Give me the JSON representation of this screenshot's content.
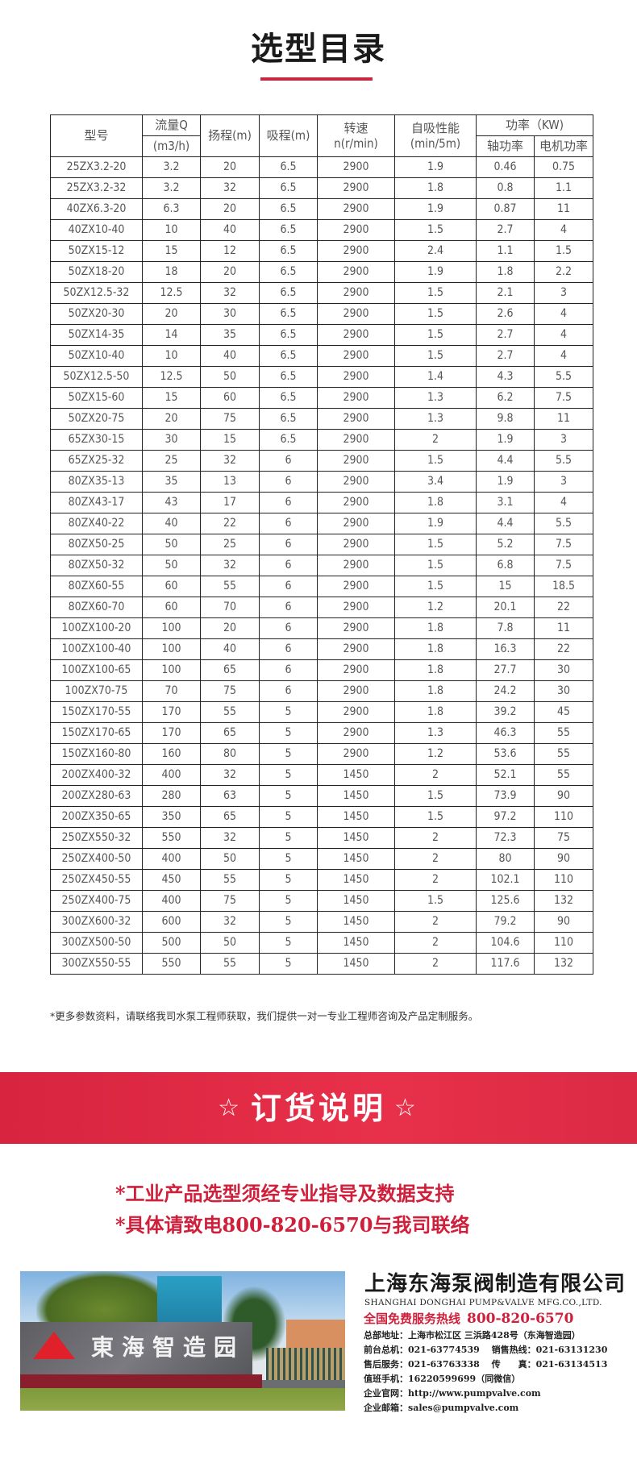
{
  "title": "选型目录",
  "table": {
    "headers": {
      "model": "型号",
      "flow": "流量Q",
      "flow_unit": "(m3/h)",
      "head": "扬程(m)",
      "suction": "吸程(m)",
      "speed": "转速",
      "speed_unit": "n(r/min)",
      "self_priming": "自吸性能",
      "self_priming_unit": "(min/5m)",
      "power": "功率（KW)",
      "shaft_power": "轴功率",
      "motor_power": "电机功率"
    },
    "rows": [
      [
        "25ZX3.2-20",
        "3.2",
        "20",
        "6.5",
        "2900",
        "1.9",
        "0.46",
        "0.75"
      ],
      [
        "25ZX3.2-32",
        "3.2",
        "32",
        "6.5",
        "2900",
        "1.8",
        "0.8",
        "1.1"
      ],
      [
        "40ZX6.3-20",
        "6.3",
        "20",
        "6.5",
        "2900",
        "1.9",
        "0.87",
        "11"
      ],
      [
        "40ZX10-40",
        "10",
        "40",
        "6.5",
        "2900",
        "1.5",
        "2.7",
        "4"
      ],
      [
        "50ZX15-12",
        "15",
        "12",
        "6.5",
        "2900",
        "2.4",
        "1.1",
        "1.5"
      ],
      [
        "50ZX18-20",
        "18",
        "20",
        "6.5",
        "2900",
        "1.9",
        "1.8",
        "2.2"
      ],
      [
        "50ZX12.5-32",
        "12.5",
        "32",
        "6.5",
        "2900",
        "1.5",
        "2.1",
        "3"
      ],
      [
        "50ZX20-30",
        "20",
        "30",
        "6.5",
        "2900",
        "1.5",
        "2.6",
        "4"
      ],
      [
        "50ZX14-35",
        "14",
        "35",
        "6.5",
        "2900",
        "1.5",
        "2.7",
        "4"
      ],
      [
        "50ZX10-40",
        "10",
        "40",
        "6.5",
        "2900",
        "1.5",
        "2.7",
        "4"
      ],
      [
        "50ZX12.5-50",
        "12.5",
        "50",
        "6.5",
        "2900",
        "1.4",
        "4.3",
        "5.5"
      ],
      [
        "50ZX15-60",
        "15",
        "60",
        "6.5",
        "2900",
        "1.3",
        "6.2",
        "7.5"
      ],
      [
        "50ZX20-75",
        "20",
        "75",
        "6.5",
        "2900",
        "1.3",
        "9.8",
        "11"
      ],
      [
        "65ZX30-15",
        "30",
        "15",
        "6.5",
        "2900",
        "2",
        "1.9",
        "3"
      ],
      [
        "65ZX25-32",
        "25",
        "32",
        "6",
        "2900",
        "1.5",
        "4.4",
        "5.5"
      ],
      [
        "80ZX35-13",
        "35",
        "13",
        "6",
        "2900",
        "3.4",
        "1.9",
        "3"
      ],
      [
        "80ZX43-17",
        "43",
        "17",
        "6",
        "2900",
        "1.8",
        "3.1",
        "4"
      ],
      [
        "80ZX40-22",
        "40",
        "22",
        "6",
        "2900",
        "1.9",
        "4.4",
        "5.5"
      ],
      [
        "80ZX50-25",
        "50",
        "25",
        "6",
        "2900",
        "1.5",
        "5.2",
        "7.5"
      ],
      [
        "80ZX50-32",
        "50",
        "32",
        "6",
        "2900",
        "1.5",
        "6.8",
        "7.5"
      ],
      [
        "80ZX60-55",
        "60",
        "55",
        "6",
        "2900",
        "1.5",
        "15",
        "18.5"
      ],
      [
        "80ZX60-70",
        "60",
        "70",
        "6",
        "2900",
        "1.2",
        "20.1",
        "22"
      ],
      [
        "100ZX100-20",
        "100",
        "20",
        "6",
        "2900",
        "1.8",
        "7.8",
        "11"
      ],
      [
        "100ZX100-40",
        "100",
        "40",
        "6",
        "2900",
        "1.8",
        "16.3",
        "22"
      ],
      [
        "100ZX100-65",
        "100",
        "65",
        "6",
        "2900",
        "1.8",
        "27.7",
        "30"
      ],
      [
        "100ZX70-75",
        "70",
        "75",
        "6",
        "2900",
        "1.8",
        "24.2",
        "30"
      ],
      [
        "150ZX170-55",
        "170",
        "55",
        "5",
        "2900",
        "1.8",
        "39.2",
        "45"
      ],
      [
        "150ZX170-65",
        "170",
        "65",
        "5",
        "2900",
        "1.3",
        "46.3",
        "55"
      ],
      [
        "150ZX160-80",
        "160",
        "80",
        "5",
        "2900",
        "1.2",
        "53.6",
        "55"
      ],
      [
        "200ZX400-32",
        "400",
        "32",
        "5",
        "1450",
        "2",
        "52.1",
        "55"
      ],
      [
        "200ZX280-63",
        "280",
        "63",
        "5",
        "1450",
        "1.5",
        "73.9",
        "90"
      ],
      [
        "200ZX350-65",
        "350",
        "65",
        "5",
        "1450",
        "1.5",
        "97.2",
        "110"
      ],
      [
        "250ZX550-32",
        "550",
        "32",
        "5",
        "1450",
        "2",
        "72.3",
        "75"
      ],
      [
        "250ZX400-50",
        "400",
        "50",
        "5",
        "1450",
        "2",
        "80",
        "90"
      ],
      [
        "250ZX450-55",
        "450",
        "55",
        "5",
        "1450",
        "2",
        "102.1",
        "110"
      ],
      [
        "250ZX400-75",
        "400",
        "75",
        "5",
        "1450",
        "1.5",
        "125.6",
        "132"
      ],
      [
        "300ZX600-32",
        "600",
        "32",
        "5",
        "1450",
        "2",
        "79.2",
        "90"
      ],
      [
        "300ZX500-50",
        "500",
        "50",
        "5",
        "1450",
        "2",
        "104.6",
        "110"
      ],
      [
        "300ZX550-55",
        "550",
        "55",
        "5",
        "1450",
        "2",
        "117.6",
        "132"
      ]
    ]
  },
  "note": "*更多参数资料，请联络我司水泵工程师获取，我们提供一对一专业工程师咨询及产品定制服务。",
  "order": {
    "star": "☆",
    "title": "订货说明",
    "line1": "*工业产品选型须经专业指导及数据支持",
    "line2": "*具体请致电800-820-6570与我司联络"
  },
  "photo": {
    "sign": "東海智造园"
  },
  "company": {
    "name": "上海东海泵阀制造有限公司",
    "name_en": "SHANGHAI DONGHAI PUMP&VALVE MFG.CO.,LTD.",
    "hotline_label": "全国免费服务热线",
    "hotline": "800-820-6570",
    "info": [
      "总部地址：上海市松江区 三浜路428号（东海智造园）",
      "前台总机：021-63774539　 销售热线：021-63131230",
      "售后服务：021-63763338　 传　　真：021-63134513",
      "值班手机：16220599699（同微信）",
      "企业官网：http://www.pumpvalve.com",
      "企业邮箱：sales@pumpvalve.com"
    ]
  },
  "colors": {
    "accent": "#cf1f3a",
    "banner": "#e02d46"
  }
}
